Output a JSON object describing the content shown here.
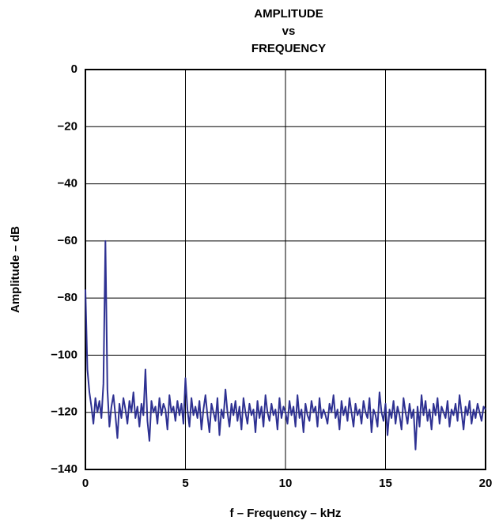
{
  "chart_data": {
    "type": "line",
    "title": [
      "AMPLITUDE",
      "vs",
      "FREQUENCY"
    ],
    "x_label": "f – Frequency – kHz",
    "y_label": "Amplitude – dB",
    "xlim": [
      0,
      20
    ],
    "xticks": [
      0,
      5,
      10,
      15,
      20
    ],
    "ylim": [
      -140,
      0
    ],
    "yticks": [
      0,
      {
        "value": -20,
        "label": "−20"
      },
      {
        "value": -40,
        "label": "−40"
      },
      {
        "value": -60,
        "label": "−60"
      },
      {
        "value": -80,
        "label": "−80"
      },
      {
        "value": -100,
        "label": "−100"
      },
      {
        "value": -120,
        "label": "−120"
      },
      {
        "value": -140,
        "label": "−140"
      }
    ],
    "grid": true,
    "x": [
      0,
      0.1,
      0.2,
      0.3,
      0.4,
      0.5,
      0.6,
      0.7,
      0.8,
      0.9,
      1,
      1.1,
      1.2,
      1.3,
      1.4,
      1.5,
      1.6,
      1.7,
      1.8,
      1.9,
      2,
      2.1,
      2.2,
      2.3,
      2.4,
      2.5,
      2.6,
      2.7,
      2.8,
      2.9,
      3,
      3.1,
      3.2,
      3.3,
      3.4,
      3.5,
      3.6,
      3.7,
      3.8,
      3.9,
      4,
      4.1,
      4.2,
      4.3,
      4.4,
      4.5,
      4.6,
      4.7,
      4.8,
      4.9,
      5,
      5.1,
      5.2,
      5.3,
      5.4,
      5.5,
      5.6,
      5.7,
      5.8,
      5.9,
      6,
      6.1,
      6.2,
      6.3,
      6.4,
      6.5,
      6.6,
      6.7,
      6.8,
      6.9,
      7,
      7.1,
      7.2,
      7.3,
      7.4,
      7.5,
      7.6,
      7.7,
      7.8,
      7.9,
      8,
      8.1,
      8.2,
      8.3,
      8.4,
      8.5,
      8.6,
      8.7,
      8.8,
      8.9,
      9,
      9.1,
      9.2,
      9.3,
      9.4,
      9.5,
      9.6,
      9.7,
      9.8,
      9.9,
      10,
      10.1,
      10.2,
      10.3,
      10.4,
      10.5,
      10.6,
      10.7,
      10.8,
      10.9,
      11,
      11.1,
      11.2,
      11.3,
      11.4,
      11.5,
      11.6,
      11.7,
      11.8,
      11.9,
      12,
      12.1,
      12.2,
      12.3,
      12.4,
      12.5,
      12.6,
      12.7,
      12.8,
      12.9,
      13,
      13.1,
      13.2,
      13.3,
      13.4,
      13.5,
      13.6,
      13.7,
      13.8,
      13.9,
      14,
      14.1,
      14.2,
      14.3,
      14.4,
      14.5,
      14.6,
      14.7,
      14.8,
      14.9,
      15,
      15.1,
      15.2,
      15.3,
      15.4,
      15.5,
      15.6,
      15.7,
      15.8,
      15.9,
      16,
      16.1,
      16.2,
      16.3,
      16.4,
      16.5,
      16.6,
      16.7,
      16.8,
      16.9,
      17,
      17.1,
      17.2,
      17.3,
      17.4,
      17.5,
      17.6,
      17.7,
      17.8,
      17.9,
      18,
      18.1,
      18.2,
      18.3,
      18.4,
      18.5,
      18.6,
      18.7,
      18.8,
      18.9,
      19,
      19.1,
      19.2,
      19.3,
      19.4,
      19.5,
      19.6,
      19.7,
      19.8,
      19.9,
      20
    ],
    "series": [
      {
        "color": "#2e3192",
        "values": [
          -77,
          -105,
          -113,
          -118,
          -124,
          -115,
          -120,
          -116,
          -122,
          -110,
          -60,
          -112,
          -125,
          -118,
          -114,
          -121,
          -129,
          -117,
          -122,
          -115,
          -119,
          -124,
          -116,
          -120,
          -113,
          -122,
          -118,
          -125,
          -117,
          -121,
          -105,
          -123,
          -130,
          -116,
          -120,
          -118,
          -124,
          -115,
          -121,
          -117,
          -119,
          -126,
          -114,
          -120,
          -118,
          -123,
          -116,
          -121,
          -117,
          -124,
          -108,
          -119,
          -125,
          -115,
          -121,
          -118,
          -122,
          -116,
          -126,
          -119,
          -114,
          -121,
          -127,
          -117,
          -120,
          -123,
          -115,
          -128,
          -119,
          -122,
          -112,
          -120,
          -125,
          -117,
          -121,
          -116,
          -123,
          -118,
          -126,
          -115,
          -120,
          -124,
          -117,
          -121,
          -119,
          -127,
          -116,
          -122,
          -118,
          -125,
          -114,
          -120,
          -123,
          -117,
          -121,
          -119,
          -126,
          -115,
          -122,
          -118,
          -120,
          -124,
          -116,
          -121,
          -118,
          -125,
          -114,
          -122,
          -119,
          -127,
          -117,
          -121,
          -123,
          -116,
          -120,
          -118,
          -125,
          -115,
          -122,
          -119,
          -121,
          -124,
          -117,
          -120,
          -114,
          -122,
          -119,
          -126,
          -116,
          -121,
          -118,
          -123,
          -115,
          -120,
          -125,
          -117,
          -121,
          -119,
          -124,
          -116,
          -120,
          -122,
          -115,
          -127,
          -119,
          -121,
          -125,
          -113,
          -120,
          -123,
          -117,
          -128,
          -119,
          -122,
          -116,
          -124,
          -118,
          -121,
          -126,
          -115,
          -120,
          -124,
          -117,
          -122,
          -119,
          -133,
          -118,
          -125,
          -114,
          -121,
          -116,
          -123,
          -119,
          -126,
          -117,
          -121,
          -115,
          -124,
          -118,
          -120,
          -122,
          -116,
          -125,
          -119,
          -121,
          -117,
          -123,
          -114,
          -120,
          -126,
          -118,
          -121,
          -116,
          -124,
          -119,
          -122,
          -117,
          -120,
          -123,
          -118,
          -119
        ]
      }
    ]
  }
}
